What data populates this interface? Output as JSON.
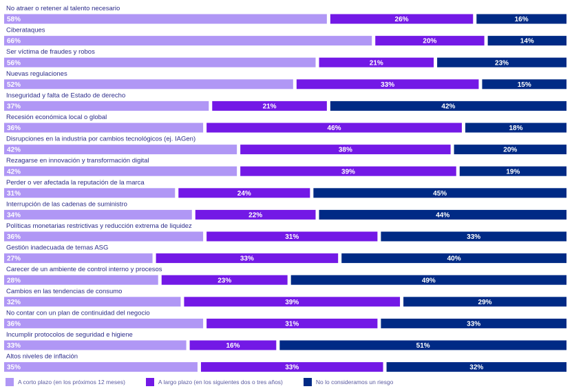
{
  "colors": {
    "short": "#b097f5",
    "long": "#7319e6",
    "none": "#002a85",
    "label": "#2b2b8a",
    "value_text": "#ffffff"
  },
  "legend": [
    {
      "label": "A corto plazo (en los próximos 12 meses)",
      "color": "#b097f5"
    },
    {
      "label": "A largo plazo (en los siguientes dos o tres años)",
      "color": "#7319e6"
    },
    {
      "label": "No lo consideramos un riesgo",
      "color": "#002a85"
    }
  ],
  "chart_data": {
    "type": "bar",
    "orientation": "horizontal",
    "stacked": true,
    "xlim": [
      0,
      100
    ],
    "grid": false,
    "legend_position": "bottom-left",
    "categories": [
      "No atraer o retener al talento necesario",
      "Ciberataques",
      "Ser víctima de fraudes y robos",
      "Nuevas regulaciones",
      "Inseguridad y falta de Estado de derecho",
      "Recesión económica local o global",
      "Disrupciones en la industria por cambios tecnológicos (ej. IAGen)",
      "Rezagarse en innovación y transformación digital",
      "Perder o ver afectada la reputación de la marca",
      "Interrupción de las cadenas de suministro",
      "Políticas monetarias restrictivas y reducción extrema de liquidez",
      "Gestión inadecuada de temas ASG",
      "Carecer de un ambiente de control interno y procesos",
      "Cambios en las tendencias de consumo",
      "No contar con un plan de continuidad del negocio",
      "Incumplir protocolos de seguridad e higiene",
      "Altos niveles de inflación"
    ],
    "series": [
      {
        "name": "A corto plazo (en los próximos 12 meses)",
        "values": [
          58,
          66,
          56,
          52,
          37,
          36,
          42,
          42,
          31,
          34,
          36,
          27,
          28,
          32,
          36,
          33,
          35
        ]
      },
      {
        "name": "A largo plazo (en los siguientes dos o tres años)",
        "values": [
          26,
          20,
          21,
          33,
          21,
          46,
          38,
          39,
          24,
          22,
          31,
          33,
          23,
          39,
          31,
          16,
          33
        ]
      },
      {
        "name": "No lo consideramos un riesgo",
        "values": [
          16,
          14,
          23,
          15,
          42,
          18,
          20,
          19,
          45,
          44,
          33,
          40,
          49,
          29,
          33,
          51,
          32
        ]
      }
    ],
    "value_suffix": "%"
  }
}
